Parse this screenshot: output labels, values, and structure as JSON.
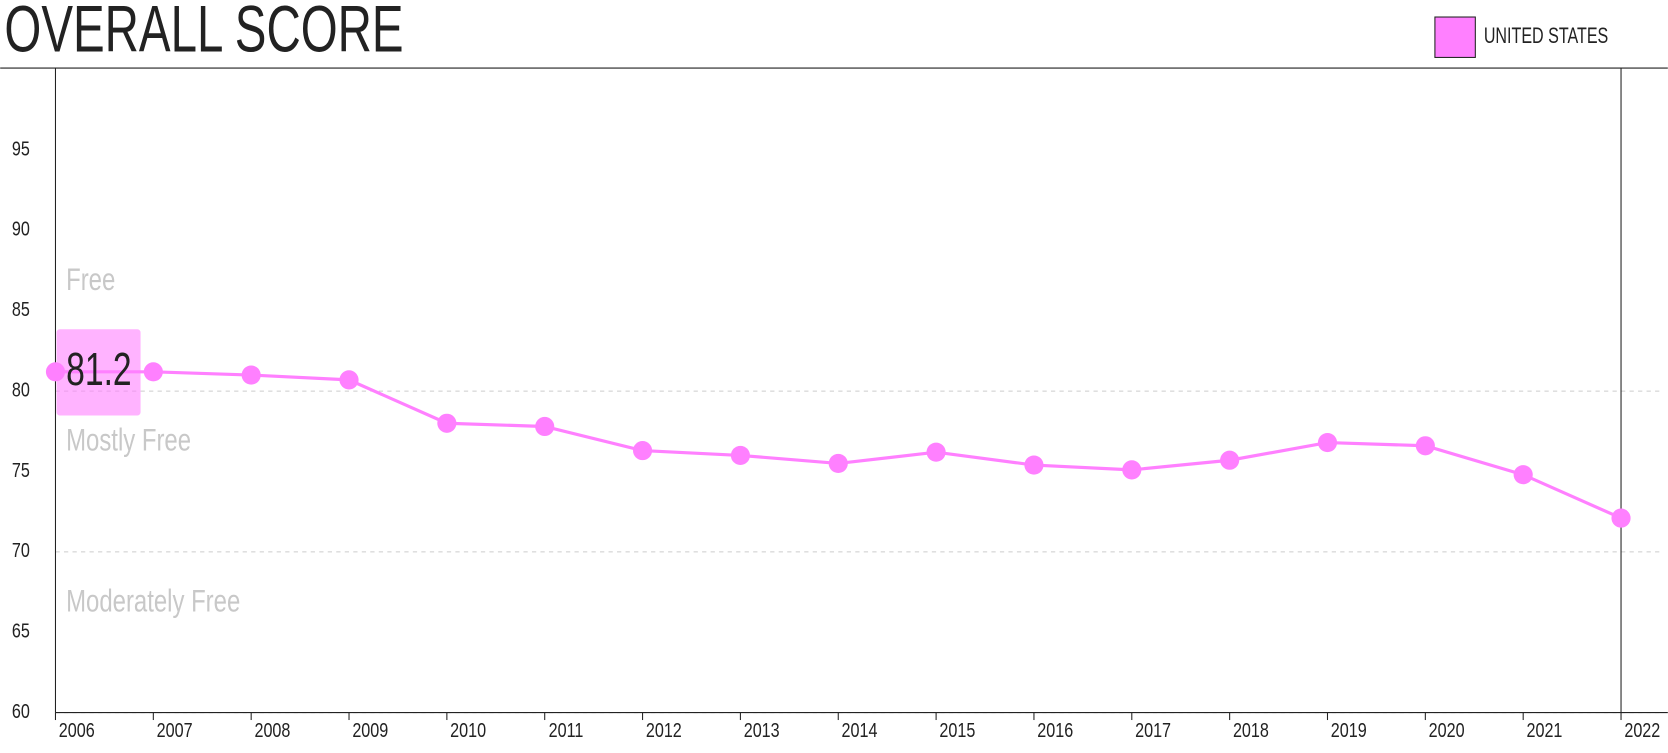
{
  "chart_data": {
    "type": "line",
    "title": "OVERALL SCORE",
    "x": [
      2006,
      2007,
      2008,
      2009,
      2010,
      2011,
      2012,
      2013,
      2014,
      2015,
      2016,
      2017,
      2018,
      2019,
      2020,
      2021,
      2022
    ],
    "series": [
      {
        "name": "UNITED STATES",
        "color": "#ff80ff",
        "values": [
          81.2,
          81.2,
          81.0,
          80.7,
          78.0,
          77.8,
          76.3,
          76.0,
          75.5,
          76.2,
          75.4,
          75.1,
          75.7,
          76.8,
          76.6,
          74.8,
          72.1
        ]
      }
    ],
    "xlim": [
      2006,
      2022
    ],
    "xticks": [
      2006,
      2007,
      2008,
      2009,
      2010,
      2011,
      2012,
      2013,
      2014,
      2015,
      2016,
      2017,
      2018,
      2019,
      2020,
      2021,
      2022
    ],
    "ylim": [
      60,
      100
    ],
    "yticks": [
      60,
      65,
      70,
      75,
      80,
      85,
      90,
      95
    ],
    "zones": [
      {
        "label": "Free",
        "from": 80
      },
      {
        "label": "Mostly Free",
        "from": 70
      },
      {
        "label": "Moderately Free",
        "from": 60
      }
    ],
    "legend": "top-right"
  }
}
